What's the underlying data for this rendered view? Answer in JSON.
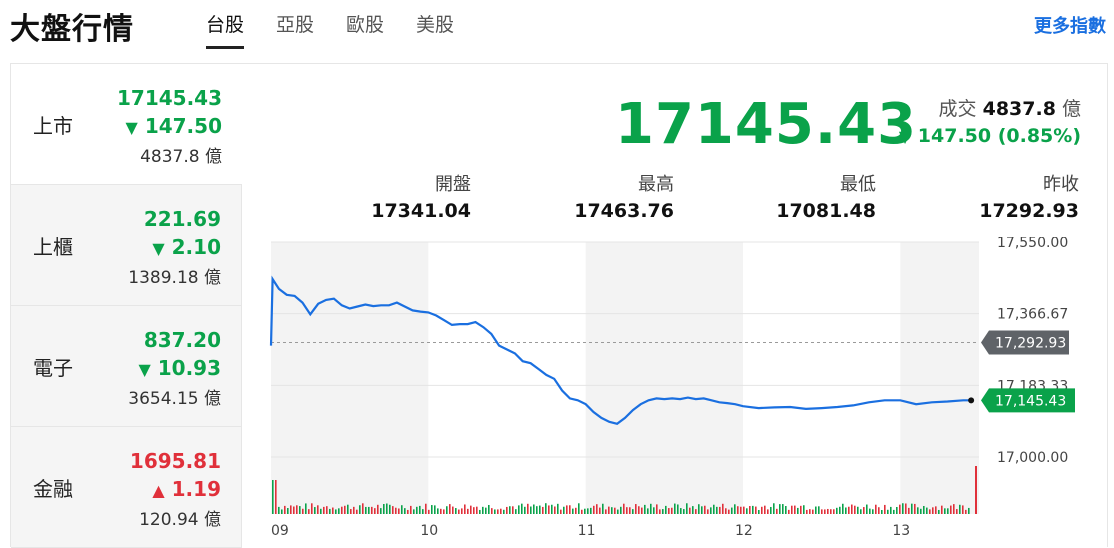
{
  "header": {
    "title": "大盤行情",
    "tabs": [
      "台股",
      "亞股",
      "歐股",
      "美股"
    ],
    "more": "更多指數"
  },
  "indices": [
    {
      "name": "上市",
      "value": "17145.43",
      "direction": "down",
      "arrow": "▼",
      "change": "147.50",
      "volume": "4837.8 億"
    },
    {
      "name": "上櫃",
      "value": "221.69",
      "direction": "down",
      "arrow": "▼",
      "change": "2.10",
      "volume": "1389.18 億"
    },
    {
      "name": "電子",
      "value": "837.20",
      "direction": "down",
      "arrow": "▼",
      "change": "10.93",
      "volume": "3654.15 億"
    },
    {
      "name": "金融",
      "value": "1695.81",
      "direction": "up",
      "arrow": "▲",
      "change": "1.19",
      "volume": "120.94 億"
    }
  ],
  "detail": {
    "price": "17145.43",
    "volume_label": "成交",
    "volume_value": "4837.8",
    "volume_unit": "億",
    "change_arrow": "▼",
    "change": "147.50 (0.85%)",
    "stats": [
      {
        "label": "開盤",
        "value": "17341.04"
      },
      {
        "label": "最高",
        "value": "17463.76"
      },
      {
        "label": "最低",
        "value": "17081.48"
      },
      {
        "label": "昨收",
        "value": "17292.93"
      }
    ]
  },
  "colors": {
    "down": "#0aa24a",
    "up": "#e0303a",
    "line": "#1a6fe0",
    "prev_close_tag": "#5f6368"
  },
  "chart_data": {
    "type": "line",
    "x_ticks": [
      "09",
      "10",
      "11",
      "12",
      "13"
    ],
    "y_ticks": [
      "17,550.00",
      "17,366.67",
      "17,183.33",
      "17,000.00"
    ],
    "ylim": [
      17000,
      17550
    ],
    "prev_close": 17292.93,
    "prev_close_label": "17,292.93",
    "last_price": 17145.43,
    "last_price_label": "17,145.43",
    "series": [
      {
        "x": [
          9.0,
          9.01,
          9.05,
          9.1,
          9.15,
          9.2,
          9.25,
          9.3,
          9.35,
          9.4,
          9.45,
          9.5,
          9.55,
          9.6,
          9.65,
          9.7,
          9.75,
          9.8,
          9.85,
          9.9,
          9.95,
          10.0,
          10.05,
          10.1,
          10.15,
          10.2,
          10.25,
          10.3,
          10.35,
          10.4,
          10.45,
          10.5,
          10.55,
          10.6,
          10.65,
          10.7,
          10.75,
          10.8,
          10.85,
          10.9,
          10.95,
          11.0,
          11.05,
          11.1,
          11.15,
          11.2,
          11.25,
          11.3,
          11.35,
          11.4,
          11.45,
          11.5,
          11.55,
          11.6,
          11.65,
          11.7,
          11.75,
          11.8,
          11.85,
          11.9,
          11.95,
          12.0,
          12.1,
          12.2,
          12.3,
          12.4,
          12.5,
          12.6,
          12.7,
          12.8,
          12.9,
          13.0,
          13.1,
          13.2,
          13.3,
          13.4,
          13.45
        ],
        "values": [
          17285,
          17455,
          17430,
          17415,
          17412,
          17395,
          17365,
          17392,
          17402,
          17405,
          17388,
          17380,
          17385,
          17390,
          17386,
          17388,
          17388,
          17395,
          17385,
          17375,
          17372,
          17370,
          17362,
          17350,
          17338,
          17340,
          17340,
          17345,
          17332,
          17315,
          17285,
          17275,
          17265,
          17245,
          17240,
          17225,
          17210,
          17200,
          17170,
          17150,
          17145,
          17135,
          17115,
          17100,
          17090,
          17085,
          17100,
          17120,
          17135,
          17145,
          17150,
          17148,
          17150,
          17148,
          17152,
          17148,
          17150,
          17145,
          17140,
          17138,
          17135,
          17130,
          17125,
          17127,
          17128,
          17123,
          17125,
          17128,
          17132,
          17140,
          17145,
          17145,
          17135,
          17140,
          17142,
          17145,
          17145
        ]
      }
    ]
  }
}
